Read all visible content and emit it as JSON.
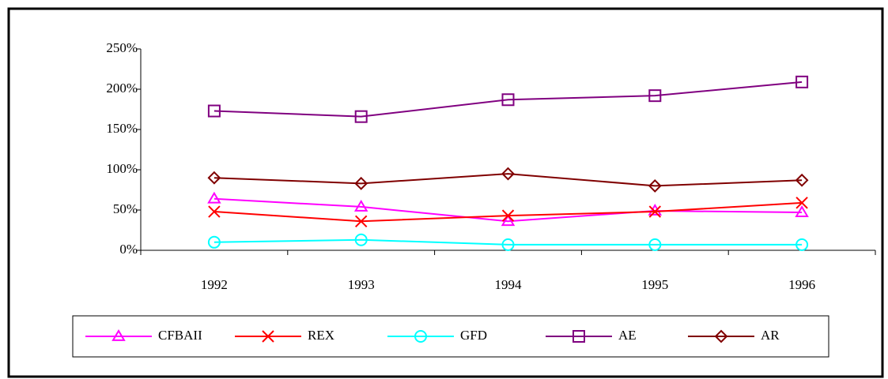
{
  "chart_data": {
    "type": "line",
    "categories": [
      "1992",
      "1993",
      "1994",
      "1995",
      "1996"
    ],
    "series": [
      {
        "name": "CFBAII",
        "color": "#ff00ff",
        "marker": "triangle",
        "values": [
          64,
          54,
          36,
          49,
          47
        ]
      },
      {
        "name": "REX",
        "color": "#ff0000",
        "marker": "x",
        "values": [
          48,
          36,
          43,
          48,
          59
        ]
      },
      {
        "name": "GFD",
        "color": "#00ffff",
        "marker": "circle",
        "values": [
          10,
          13,
          7,
          7,
          7
        ]
      },
      {
        "name": "AE",
        "color": "#800080",
        "marker": "square",
        "values": [
          173,
          166,
          187,
          192,
          209
        ]
      },
      {
        "name": "AR",
        "color": "#800000",
        "marker": "diamond",
        "values": [
          90,
          83,
          95,
          80,
          87
        ]
      }
    ],
    "ylim": [
      0,
      250
    ],
    "yticks": [
      {
        "value": 0,
        "label": "0%"
      },
      {
        "value": 50,
        "label": "50%"
      },
      {
        "value": 100,
        "label": "100%"
      },
      {
        "value": 150,
        "label": "150%"
      },
      {
        "value": 200,
        "label": "200%"
      },
      {
        "value": 250,
        "label": "250%"
      }
    ],
    "grid": false,
    "legend": "bottom"
  }
}
